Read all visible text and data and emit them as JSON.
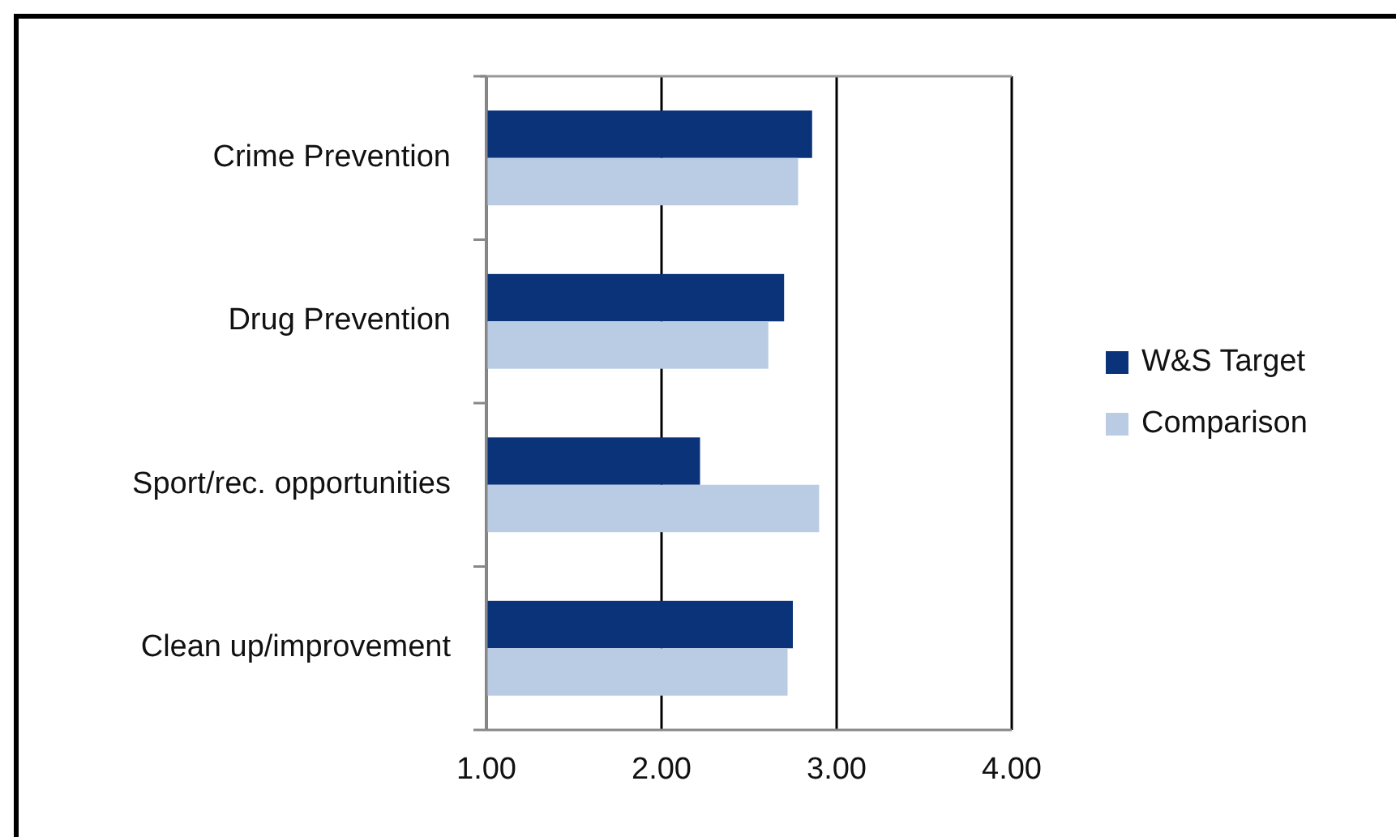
{
  "chart_data": {
    "type": "bar",
    "orientation": "horizontal",
    "categories": [
      "Crime Prevention",
      "Drug Prevention",
      "Sport/rec. opportunities",
      "Clean up/improvement"
    ],
    "series": [
      {
        "name": "W&S Target",
        "color": "#0b337a",
        "values": [
          2.86,
          2.7,
          2.22,
          2.75
        ]
      },
      {
        "name": "Comparison",
        "color": "#b9cce4",
        "values": [
          2.78,
          2.61,
          2.9,
          2.72
        ]
      }
    ],
    "xlim": [
      1,
      4
    ],
    "xticks": [
      {
        "value": 1,
        "label": "1.00"
      },
      {
        "value": 2,
        "label": "2.00"
      },
      {
        "value": 3,
        "label": "3.00"
      },
      {
        "value": 4,
        "label": "4.00"
      }
    ],
    "grid": "x",
    "legend": "right"
  }
}
